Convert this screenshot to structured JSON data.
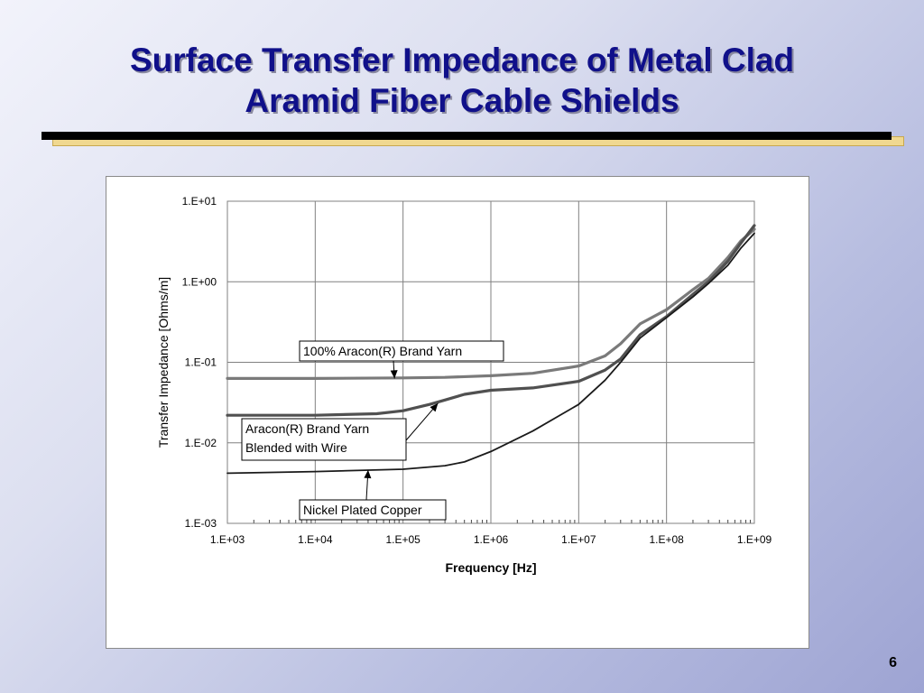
{
  "slide": {
    "title_line1": "Surface Transfer Impedance of Metal Clad",
    "title_line2": "Aramid Fiber Cable Shields",
    "page_number": "6",
    "colors": {
      "title": "#10108a",
      "rule": "#000000",
      "rule_accent": "#f0d890"
    }
  },
  "chart_data": {
    "type": "line",
    "title": "",
    "xlabel": "Frequency [Hz]",
    "ylabel": "Transfer Impedance [Ohms/m]",
    "x_scale": "log",
    "y_scale": "log",
    "xlim": [
      1000,
      1000000000
    ],
    "ylim": [
      0.001,
      10
    ],
    "grid": true,
    "legend": "none",
    "x_tick_labels": [
      "1.E+03",
      "1.E+04",
      "1.E+05",
      "1.E+06",
      "1.E+07",
      "1.E+08",
      "1.E+09"
    ],
    "y_tick_labels": [
      "1.E+01",
      "1.E+00",
      "1.E-01",
      "1.E-02",
      "1.E-03"
    ],
    "series": [
      {
        "label_ref": 0,
        "color": "#7a7a7a",
        "points": [
          [
            1000,
            0.063
          ],
          [
            10000,
            0.063
          ],
          [
            100000,
            0.064
          ],
          [
            300000,
            0.065
          ],
          [
            1000000,
            0.068
          ],
          [
            3000000,
            0.073
          ],
          [
            10000000,
            0.09
          ],
          [
            20000000,
            0.12
          ],
          [
            30000000,
            0.17
          ],
          [
            50000000,
            0.3
          ],
          [
            100000000,
            0.45
          ],
          [
            200000000,
            0.8
          ],
          [
            300000000,
            1.1
          ],
          [
            500000000,
            2.0
          ],
          [
            700000000,
            3.2
          ],
          [
            1000000000,
            4.5
          ]
        ]
      },
      {
        "label_ref": 1,
        "color": "#505050",
        "points": [
          [
            1000,
            0.022
          ],
          [
            10000,
            0.022
          ],
          [
            50000,
            0.023
          ],
          [
            100000,
            0.025
          ],
          [
            200000,
            0.03
          ],
          [
            300000,
            0.034
          ],
          [
            500000,
            0.04
          ],
          [
            1000000,
            0.045
          ],
          [
            3000000,
            0.048
          ],
          [
            10000000,
            0.058
          ],
          [
            20000000,
            0.08
          ],
          [
            30000000,
            0.11
          ],
          [
            50000000,
            0.22
          ],
          [
            100000000,
            0.37
          ],
          [
            200000000,
            0.7
          ],
          [
            300000000,
            1.0
          ],
          [
            500000000,
            1.8
          ],
          [
            700000000,
            3.0
          ],
          [
            1000000000,
            5.0
          ]
        ]
      },
      {
        "label_ref": 2,
        "color": "#1a1a1a",
        "points": [
          [
            1000,
            0.0042
          ],
          [
            10000,
            0.0044
          ],
          [
            100000,
            0.0047
          ],
          [
            300000,
            0.0052
          ],
          [
            500000,
            0.0058
          ],
          [
            1000000,
            0.0078
          ],
          [
            3000000,
            0.014
          ],
          [
            10000000,
            0.03
          ],
          [
            20000000,
            0.06
          ],
          [
            30000000,
            0.1
          ],
          [
            50000000,
            0.2
          ],
          [
            100000000,
            0.36
          ],
          [
            200000000,
            0.65
          ],
          [
            300000000,
            0.95
          ],
          [
            500000000,
            1.6
          ],
          [
            700000000,
            2.6
          ],
          [
            1000000000,
            4.0
          ]
        ]
      }
    ],
    "annotations": [
      {
        "line1": "100% Aracon(R) Brand Yarn",
        "line2": "",
        "points_to": [
          80000,
          0.063
        ]
      },
      {
        "line1": "Aracon(R) Brand Yarn",
        "line2": "Blended with Wire",
        "points_to": [
          250000,
          0.031
        ]
      },
      {
        "line1": "Nickel Plated Copper",
        "line2": "",
        "points_to": [
          40000,
          0.0046
        ]
      }
    ]
  }
}
